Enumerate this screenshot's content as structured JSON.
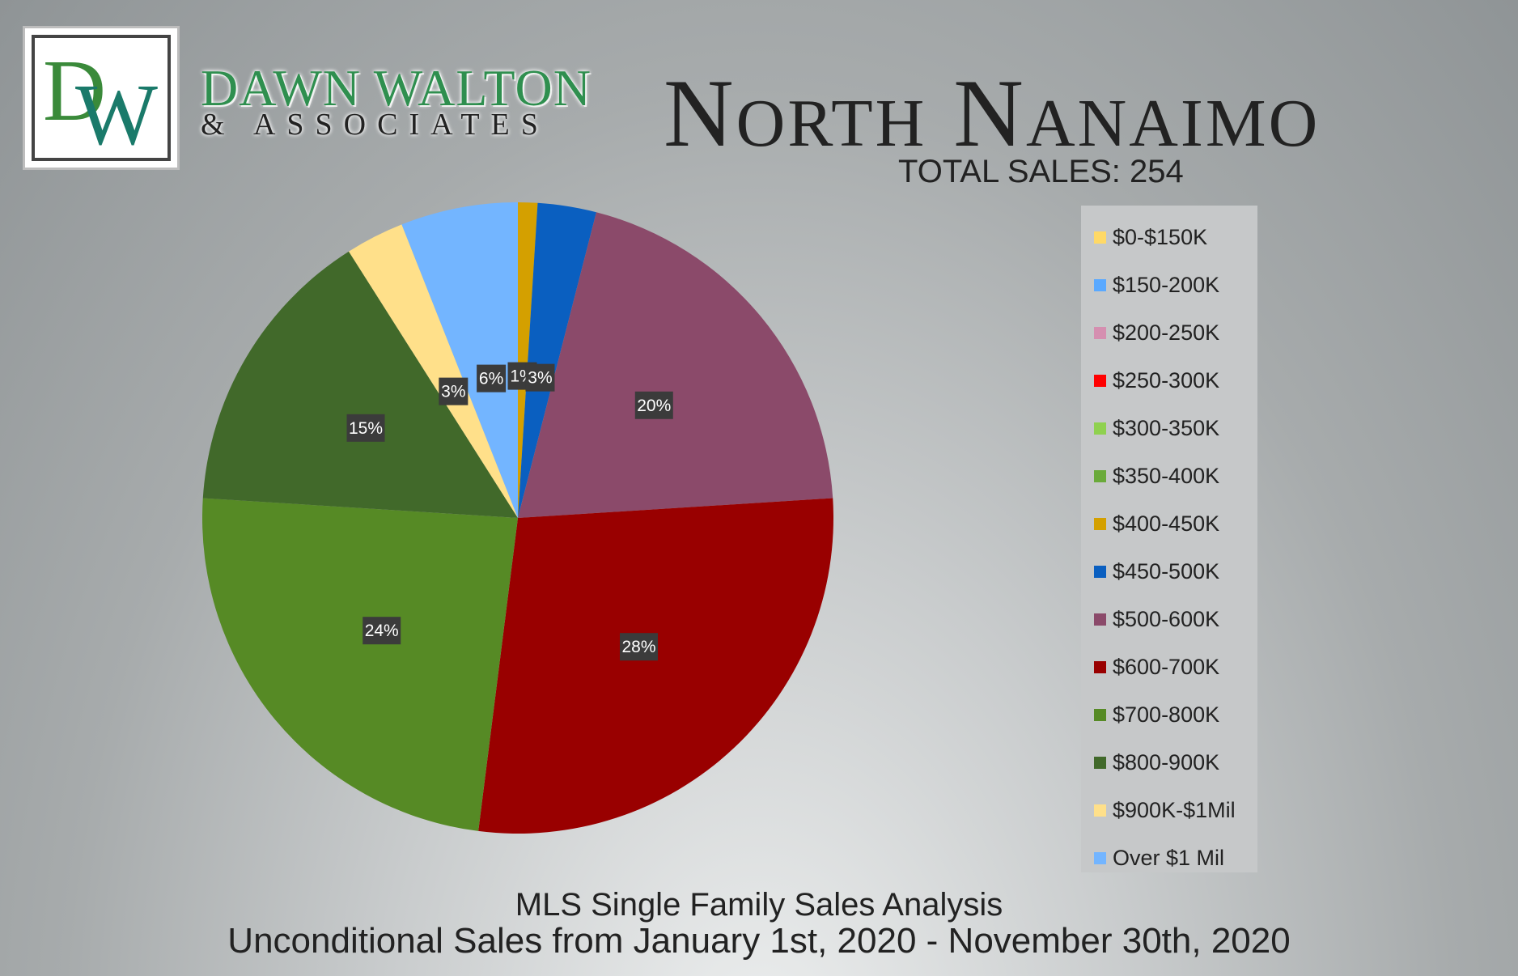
{
  "brand": {
    "logo_letters": "DW",
    "name_line1": "DAWN WALTON",
    "name_line2": "& ASSOCIATES"
  },
  "header": {
    "title": "North Nanaimo",
    "total_sales": "TOTAL SALES: 254"
  },
  "footer": {
    "line1": "MLS Single Family Sales Analysis",
    "line2": "Unconditional Sales from January 1st, 2020 - November 30th, 2020"
  },
  "chart_data": {
    "type": "pie",
    "title": "North Nanaimo",
    "categories": [
      "$0-$150K",
      "$150-200K",
      "$200-250K",
      "$250-300K",
      "$300-350K",
      "$350-400K",
      "$400-450K",
      "$450-500K",
      "$500-600K",
      "$600-700K",
      "$700-800K",
      "$800-900K",
      "$900K-$1Mil",
      "Over $1 Mil"
    ],
    "values": [
      0,
      0,
      0,
      0,
      0,
      0,
      1,
      3,
      20,
      28,
      24,
      15,
      3,
      6
    ],
    "data_labels": [
      "",
      "",
      "",
      "",
      "",
      "",
      "1%",
      "3%",
      "20%",
      "28%",
      "24%",
      "15%",
      "3%",
      "6%"
    ],
    "colors": [
      "#ffd966",
      "#5aa9ff",
      "#d58fb0",
      "#ff0000",
      "#8fd14f",
      "#6aaa3a",
      "#d4a000",
      "#0a5fc0",
      "#8b4a6a",
      "#990000",
      "#568a25",
      "#41692a",
      "#ffe08a",
      "#73b5ff"
    ],
    "legend": "right"
  }
}
